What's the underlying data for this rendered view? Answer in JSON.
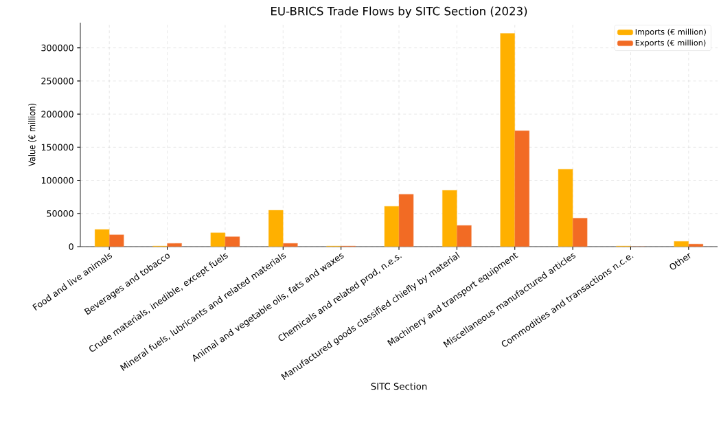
{
  "chart_data": {
    "type": "bar",
    "title": "EU-BRICS Trade Flows by SITC Section (2023)",
    "xlabel": "SITC Section",
    "ylabel": "Value (€ million)",
    "categories": [
      "Food and live animals",
      "Beverages and tobacco",
      "Crude materials, inedible, except fuels",
      "Mineral fuels, lubricants and related materials",
      "Animal and vegetable oils, fats and waxes",
      "Chemicals and related prod, n.e.s.",
      "Manufactured goods classified chiefly by material",
      "Machinery and transport equipment",
      "Miscellaneous manufactured articles",
      "Commodities and transactions n.c.e.",
      "Other"
    ],
    "series": [
      {
        "name": "Imports (€ million)",
        "color": "#ffb000",
        "values": [
          26000,
          1000,
          21000,
          55000,
          1000,
          61000,
          85000,
          322000,
          117000,
          1000,
          8000
        ]
      },
      {
        "name": "Exports (€ million)",
        "color": "#f26b24",
        "values": [
          18000,
          5000,
          15000,
          5000,
          1000,
          79000,
          32000,
          175000,
          43000,
          0,
          4000
        ]
      }
    ],
    "ylim": [
      0,
      338000
    ],
    "yticks": [
      0,
      50000,
      100000,
      150000,
      200000,
      250000,
      300000
    ],
    "grid": true,
    "legend": "top right"
  }
}
